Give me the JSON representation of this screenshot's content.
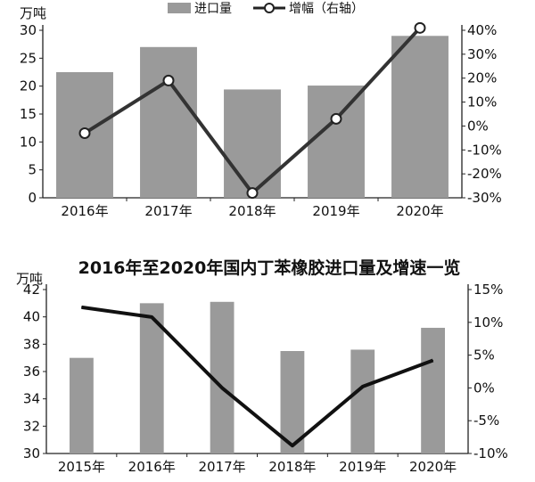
{
  "chart_data": [
    {
      "type": "bar+line",
      "title": "",
      "unit_left": "万吨",
      "categories": [
        "2016年",
        "2017年",
        "2018年",
        "2019年",
        "2020年"
      ],
      "series": [
        {
          "name": "进口量",
          "kind": "bar",
          "axis": "left",
          "values": [
            22.5,
            27,
            19.4,
            20.1,
            29
          ],
          "color": "#9a9a9a"
        },
        {
          "name": "增幅（右轴）",
          "kind": "line",
          "axis": "right",
          "values": [
            -3,
            19,
            -28,
            3,
            41
          ],
          "color": "#333333"
        }
      ],
      "ylim_left": [
        0,
        30
      ],
      "yticks_left": [
        "0",
        "5",
        "10",
        "15",
        "20",
        "25",
        "30"
      ],
      "ylim_right": [
        -30,
        40
      ],
      "yticks_right": [
        "-30%",
        "-20%",
        "-10%",
        "0%",
        "10%",
        "20%",
        "30%",
        "40%"
      ],
      "grid": false,
      "legend": "top"
    },
    {
      "type": "bar+line",
      "title": "2016年至2020年国内丁苯橡胶进口量及增速一览",
      "unit_left": "万吨",
      "categories": [
        "2015年",
        "2016年",
        "2017年",
        "2018年",
        "2019年",
        "2020年"
      ],
      "series": [
        {
          "name": "",
          "kind": "bar",
          "axis": "left",
          "values": [
            37,
            41,
            41.1,
            37.5,
            37.6,
            39.2
          ],
          "color": "#9a9a9a"
        },
        {
          "name": "",
          "kind": "line",
          "axis": "right",
          "values": [
            12.3,
            10.8,
            0,
            -8.8,
            0.2,
            4.2
          ],
          "color": "#111111"
        }
      ],
      "ylim_left": [
        30,
        42
      ],
      "yticks_left": [
        "30",
        "32",
        "34",
        "36",
        "38",
        "40",
        "42"
      ],
      "ylim_right": [
        -10,
        15
      ],
      "yticks_right": [
        "-10%",
        "-5%",
        "0%",
        "5%",
        "10%",
        "15%"
      ],
      "grid": false,
      "legend": "none"
    }
  ]
}
